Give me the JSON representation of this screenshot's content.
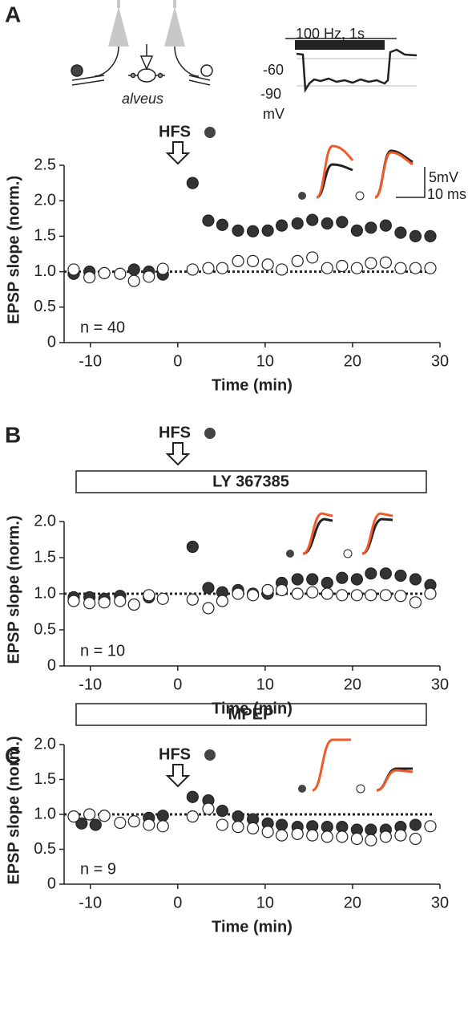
{
  "chart_data": [
    {
      "type": "scatter",
      "panel_label": "A",
      "xlabel": "Time (min)",
      "ylabel": "EPSP slope (norm.)",
      "xlim": [
        -13,
        30
      ],
      "xticks": [
        -10,
        0,
        10,
        20,
        30
      ],
      "ylim": [
        0,
        2.5
      ],
      "yticks": [
        0,
        0.5,
        {
          "value": 1,
          "label": "1.0"
        },
        1.5,
        {
          "value": 2,
          "label": "2.0"
        },
        2.5
      ],
      "baseline": 1,
      "annotations": {
        "stimulus": "HFS",
        "n": "n = 40",
        "schematic": "alveus",
        "train": "100 Hz, 1s",
        "vm_high": "-60",
        "vm_low": "-90",
        "vm_unit": "mV",
        "scale_v": "5mV",
        "scale_t": "10 ms"
      },
      "series": [
        {
          "color": "#333333",
          "x": [
            -11.9,
            -10.1,
            -5.0,
            -3.3,
            -1.7,
            1.7,
            3.5,
            5.1,
            6.9,
            8.6,
            10.3,
            11.9,
            13.7,
            15.4,
            17.1,
            18.8,
            20.5,
            22.1,
            23.8,
            25.5,
            27.2,
            28.9
          ],
          "values": [
            0.97,
            1.0,
            1.03,
            1.0,
            0.96,
            2.25,
            1.72,
            1.66,
            1.58,
            1.57,
            1.58,
            1.65,
            1.68,
            1.73,
            1.68,
            1.7,
            1.58,
            1.62,
            1.65,
            1.55,
            1.5,
            1.5
          ]
        },
        {
          "color": "#ffffff",
          "x": [
            -11.9,
            -10.1,
            -8.4,
            -6.6,
            -5.0,
            -3.3,
            -1.7,
            1.7,
            3.5,
            5.1,
            6.9,
            8.6,
            10.3,
            11.9,
            13.7,
            15.4,
            17.1,
            18.8,
            20.5,
            22.1,
            23.8,
            25.5,
            27.2,
            28.9
          ],
          "values": [
            1.03,
            0.92,
            0.98,
            0.97,
            0.87,
            0.93,
            1.04,
            1.03,
            1.05,
            1.05,
            1.15,
            1.15,
            1.1,
            1.03,
            1.15,
            1.2,
            1.05,
            1.08,
            1.05,
            1.12,
            1.13,
            1.05,
            1.05,
            1.05
          ]
        }
      ]
    },
    {
      "type": "scatter",
      "panel_label": "B",
      "xlabel": "Time (min)",
      "ylabel": "EPSP slope (norm.)",
      "xlim": [
        -13,
        30
      ],
      "xticks": [
        -10,
        0,
        10,
        20,
        30
      ],
      "ylim": [
        0,
        2
      ],
      "yticks": [
        0,
        0.5,
        {
          "value": 1,
          "label": "1.0"
        },
        1.5,
        {
          "value": 2,
          "label": "2.0"
        }
      ],
      "baseline": 1,
      "annotations": {
        "stimulus": "HFS",
        "n": "n = 10",
        "drug": "LY 367385"
      },
      "series": [
        {
          "color": "#333333",
          "x": [
            -11.9,
            -10.1,
            -8.4,
            -6.6,
            -5.0,
            -3.3,
            1.7,
            3.5,
            5.1,
            6.9,
            8.6,
            10.3,
            11.9,
            13.7,
            15.4,
            17.1,
            18.8,
            20.5,
            22.1,
            23.8,
            25.5,
            27.2,
            28.9
          ],
          "values": [
            0.95,
            0.95,
            0.93,
            0.97,
            0.85,
            0.95,
            1.65,
            1.08,
            1.02,
            1.05,
            1.0,
            1.0,
            1.15,
            1.2,
            1.2,
            1.15,
            1.22,
            1.2,
            1.28,
            1.28,
            1.25,
            1.2,
            1.12
          ]
        },
        {
          "color": "#ffffff",
          "x": [
            -11.9,
            -10.1,
            -8.4,
            -6.6,
            -5.0,
            -3.3,
            -1.7,
            1.7,
            3.5,
            5.1,
            6.9,
            8.6,
            10.3,
            11.9,
            13.7,
            15.4,
            17.1,
            18.8,
            20.5,
            22.1,
            23.8,
            25.5,
            27.2,
            28.9
          ],
          "values": [
            0.9,
            0.87,
            0.88,
            0.9,
            0.85,
            0.98,
            0.93,
            0.92,
            0.8,
            0.9,
            1.0,
            0.98,
            1.05,
            1.05,
            1.0,
            1.02,
            1.0,
            0.98,
            0.98,
            0.98,
            0.98,
            0.97,
            0.88,
            1.0
          ]
        }
      ]
    },
    {
      "type": "scatter",
      "panel_label": "C",
      "xlabel": "Time (min)",
      "ylabel": "EPSP slope (norm.)",
      "xlim": [
        -13,
        30
      ],
      "xticks": [
        -10,
        0,
        10,
        20,
        30
      ],
      "ylim": [
        0,
        2
      ],
      "yticks": [
        0,
        0.5,
        {
          "value": 1,
          "label": "1.0"
        },
        1.5,
        {
          "value": 2,
          "label": "2.0"
        }
      ],
      "baseline": 1,
      "annotations": {
        "stimulus": "HFS",
        "n": "n = 9",
        "drug": "MPEP"
      },
      "series": [
        {
          "color": "#333333",
          "x": [
            -11.0,
            -9.4,
            -3.3,
            -1.7,
            1.7,
            3.5,
            5.1,
            6.9,
            8.6,
            10.3,
            11.9,
            13.7,
            15.4,
            17.1,
            18.8,
            20.5,
            22.1,
            23.8,
            25.5,
            27.2
          ],
          "values": [
            0.87,
            0.85,
            0.95,
            0.98,
            1.25,
            1.2,
            1.05,
            0.97,
            0.93,
            0.87,
            0.85,
            0.82,
            0.83,
            0.82,
            0.82,
            0.78,
            0.78,
            0.78,
            0.82,
            0.85
          ]
        },
        {
          "color": "#ffffff",
          "x": [
            -11.9,
            -10.1,
            -8.4,
            -6.6,
            -5.0,
            -3.3,
            -1.7,
            1.7,
            3.5,
            5.1,
            6.9,
            8.6,
            10.3,
            11.9,
            13.7,
            15.4,
            17.1,
            18.8,
            20.5,
            22.1,
            23.8,
            25.5,
            27.2,
            28.9
          ],
          "values": [
            0.97,
            1.0,
            0.98,
            0.88,
            0.9,
            0.85,
            0.83,
            0.97,
            1.08,
            0.85,
            0.82,
            0.8,
            0.75,
            0.7,
            0.72,
            0.7,
            0.68,
            0.68,
            0.65,
            0.63,
            0.68,
            0.7,
            0.65,
            0.83
          ]
        }
      ]
    }
  ]
}
